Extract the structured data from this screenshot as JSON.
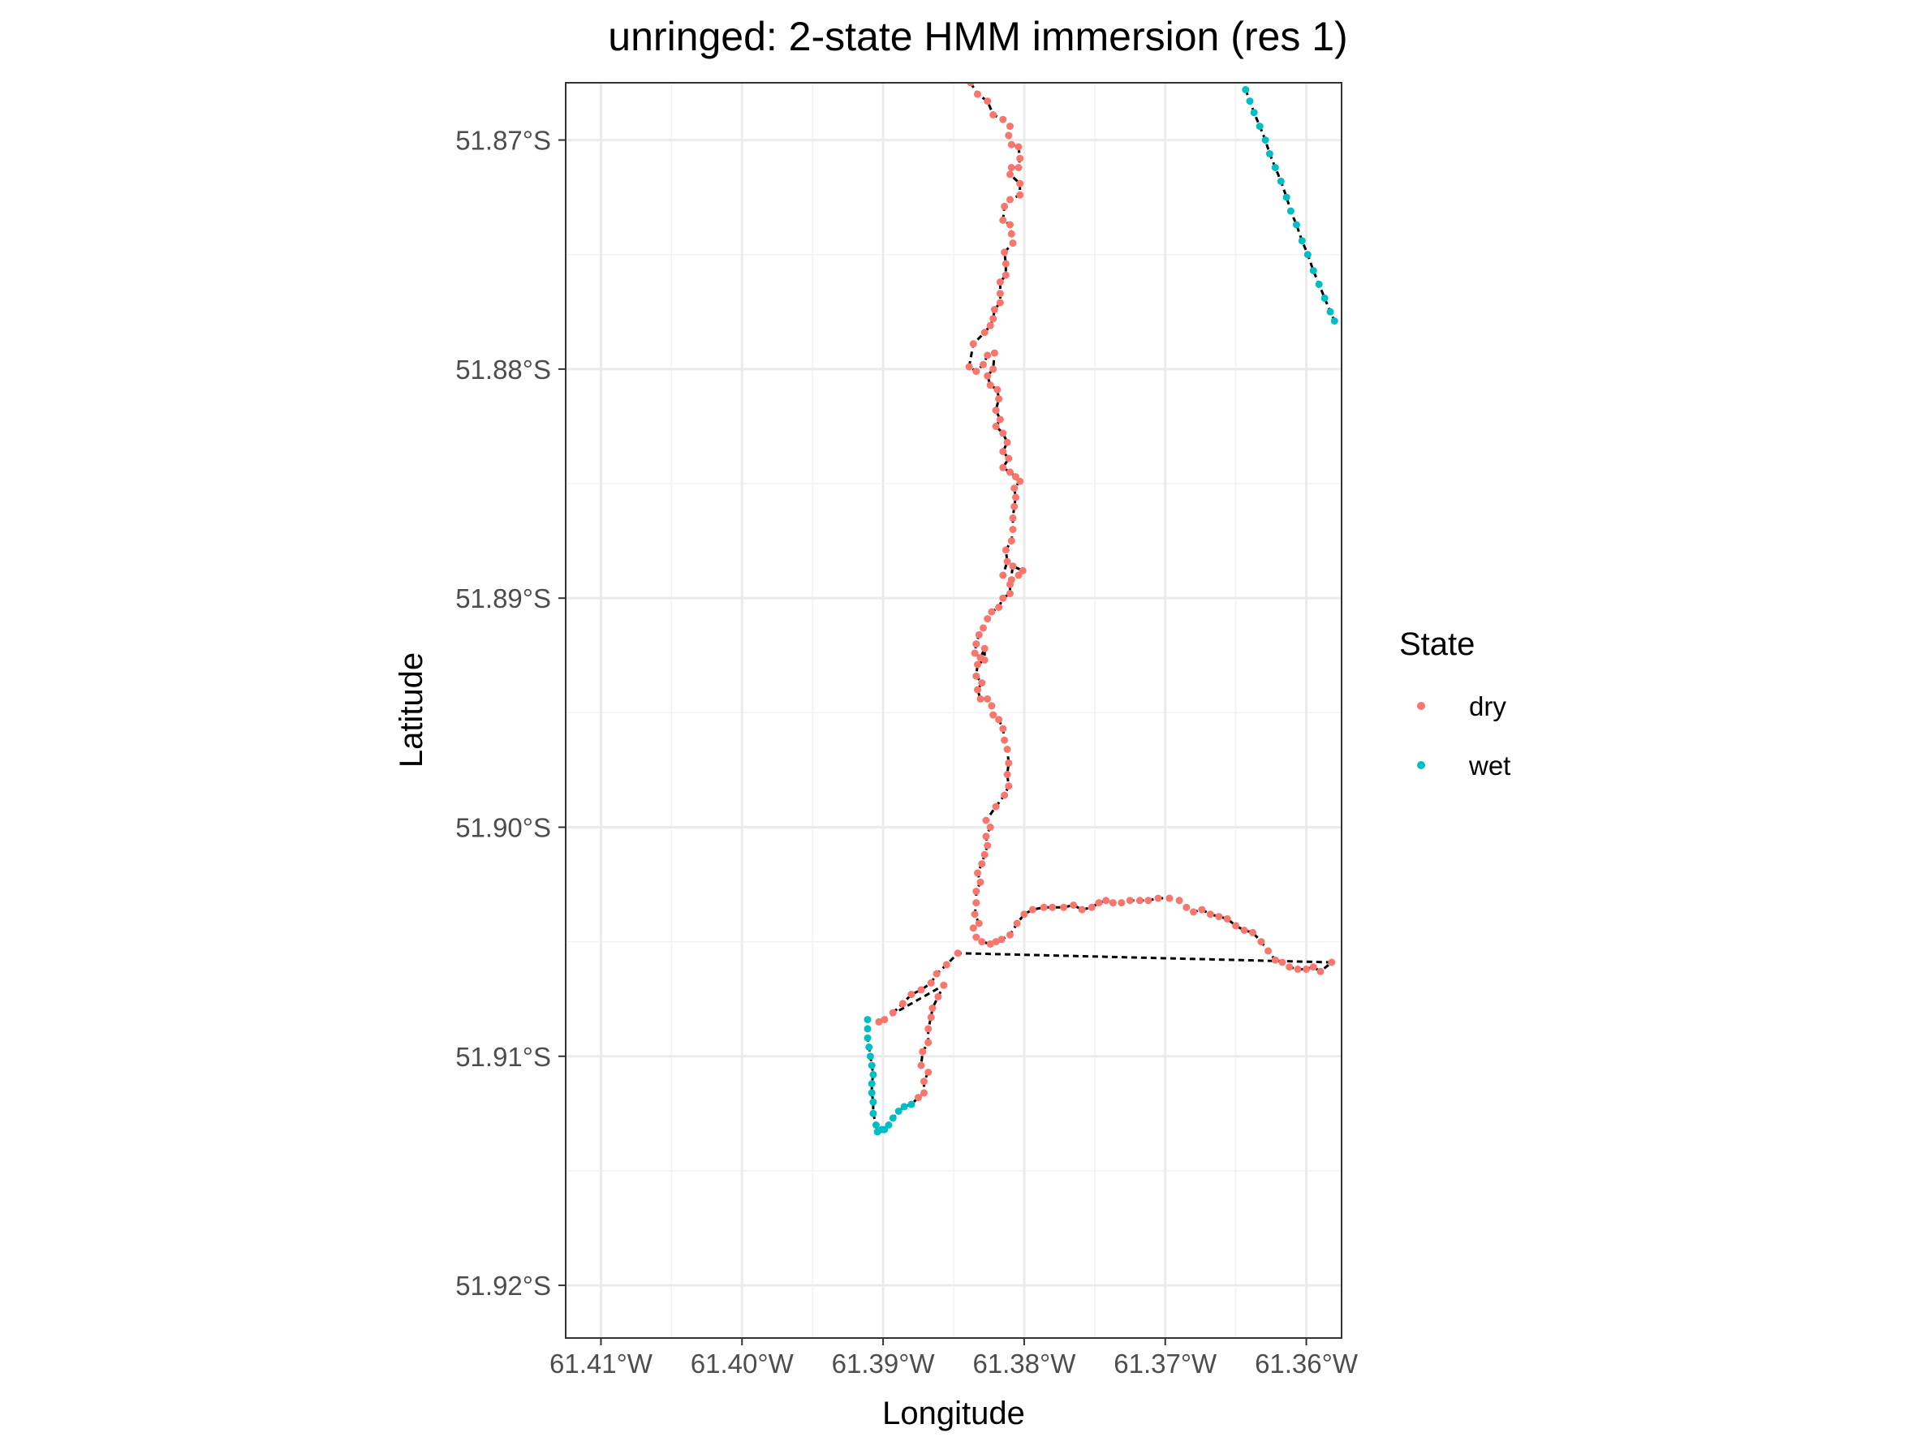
{
  "chart_data": {
    "type": "scatter",
    "title": "unringed: 2-state HMM immersion (res 1)",
    "xlabel": "Longitude",
    "ylabel": "Latitude",
    "xlim": [
      -61.4125,
      -61.3575
    ],
    "ylim": [
      -51.9223,
      -51.8675
    ],
    "x_ticks": [
      {
        "value": -61.41,
        "label": "61.41°W"
      },
      {
        "value": -61.4,
        "label": "61.40°W"
      },
      {
        "value": -61.39,
        "label": "61.39°W"
      },
      {
        "value": -61.38,
        "label": "61.38°W"
      },
      {
        "value": -61.37,
        "label": "61.37°W"
      },
      {
        "value": -61.36,
        "label": "61.36°W"
      }
    ],
    "y_ticks": [
      {
        "value": -51.87,
        "label": "51.87°S"
      },
      {
        "value": -51.88,
        "label": "51.88°S"
      },
      {
        "value": -51.89,
        "label": "51.89°S"
      },
      {
        "value": -51.9,
        "label": "51.90°S"
      },
      {
        "value": -51.91,
        "label": "51.91°S"
      },
      {
        "value": -51.92,
        "label": "51.92°S"
      }
    ],
    "grid": true,
    "legend": {
      "title": "State",
      "position": "right",
      "entries": [
        {
          "label": "dry",
          "color": "#F8766D"
        },
        {
          "label": "wet",
          "color": "#00BFC4"
        }
      ]
    },
    "path_color": "#000000",
    "series": [
      {
        "name": "dry",
        "color": "#F8766D",
        "points": [
          [
            -61.3838,
            -51.8675
          ],
          [
            -61.3833,
            -51.868
          ],
          [
            -61.3826,
            -51.8683
          ],
          [
            -61.3822,
            -51.8689
          ],
          [
            -61.3815,
            -51.8691
          ],
          [
            -61.381,
            -51.8694
          ],
          [
            -61.3811,
            -51.8698
          ],
          [
            -61.3809,
            -51.8702
          ],
          [
            -61.3804,
            -51.8703
          ],
          [
            -61.3803,
            -51.8708
          ],
          [
            -61.3804,
            -51.8712
          ],
          [
            -61.3809,
            -51.8712
          ],
          [
            -61.381,
            -51.8715
          ],
          [
            -61.3803,
            -51.8719
          ],
          [
            -61.3803,
            -51.8724
          ],
          [
            -61.381,
            -51.8726
          ],
          [
            -61.3814,
            -51.8729
          ],
          [
            -61.3815,
            -51.8735
          ],
          [
            -61.381,
            -51.8737
          ],
          [
            -61.3809,
            -51.8741
          ],
          [
            -61.3808,
            -51.8745
          ],
          [
            -61.3814,
            -51.8749
          ],
          [
            -61.3813,
            -51.8754
          ],
          [
            -61.3813,
            -51.8759
          ],
          [
            -61.3817,
            -51.8762
          ],
          [
            -61.3817,
            -51.8767
          ],
          [
            -61.3817,
            -51.8771
          ],
          [
            -61.3821,
            -51.8774
          ],
          [
            -61.3822,
            -51.8778
          ],
          [
            -61.3824,
            -51.8781
          ],
          [
            -61.3828,
            -51.8784
          ],
          [
            -61.3836,
            -51.8789
          ],
          [
            -61.3839,
            -51.8799
          ],
          [
            -61.3834,
            -51.8801
          ],
          [
            -61.3829,
            -51.8798
          ],
          [
            -61.3826,
            -51.8794
          ],
          [
            -61.3821,
            -51.8793
          ],
          [
            -61.3822,
            -51.88
          ],
          [
            -61.3826,
            -51.8803
          ],
          [
            -61.3824,
            -51.8807
          ],
          [
            -61.3819,
            -51.8809
          ],
          [
            -61.3818,
            -51.8813
          ],
          [
            -61.382,
            -51.8818
          ],
          [
            -61.3817,
            -51.8822
          ],
          [
            -61.382,
            -51.8825
          ],
          [
            -61.3815,
            -51.8828
          ],
          [
            -61.3812,
            -51.8832
          ],
          [
            -61.3815,
            -51.8836
          ],
          [
            -61.3811,
            -51.8839
          ],
          [
            -61.3815,
            -51.8843
          ],
          [
            -61.381,
            -51.8845
          ],
          [
            -61.3806,
            -51.8847
          ],
          [
            -61.3803,
            -51.8849
          ],
          [
            -61.3807,
            -51.8852
          ],
          [
            -61.3806,
            -51.8856
          ],
          [
            -61.3807,
            -51.886
          ],
          [
            -61.3808,
            -51.8865
          ],
          [
            -61.3808,
            -51.887
          ],
          [
            -61.3809,
            -51.8875
          ],
          [
            -61.3813,
            -51.8879
          ],
          [
            -61.3812,
            -51.8884
          ],
          [
            -61.3815,
            -51.889
          ],
          [
            -61.3809,
            -51.8892
          ],
          [
            -61.3804,
            -51.889
          ],
          [
            -61.3801,
            -51.8888
          ],
          [
            -61.3808,
            -51.8886
          ],
          [
            -61.381,
            -51.8894
          ],
          [
            -61.381,
            -51.8898
          ],
          [
            -61.3815,
            -51.89
          ],
          [
            -61.3818,
            -51.8904
          ],
          [
            -61.3823,
            -51.8906
          ],
          [
            -61.3826,
            -51.8909
          ],
          [
            -61.3829,
            -51.8913
          ],
          [
            -61.3832,
            -51.8916
          ],
          [
            -61.3834,
            -51.892
          ],
          [
            -61.3835,
            -51.8924
          ],
          [
            -61.3831,
            -51.8926
          ],
          [
            -61.3828,
            -51.8922
          ],
          [
            -61.3828,
            -51.8927
          ],
          [
            -61.3833,
            -51.8929
          ],
          [
            -61.3834,
            -51.8934
          ],
          [
            -61.383,
            -51.8937
          ],
          [
            -61.3833,
            -51.894
          ],
          [
            -61.3831,
            -51.8944
          ],
          [
            -61.3826,
            -51.8944
          ],
          [
            -61.3823,
            -51.8947
          ],
          [
            -61.3822,
            -51.8951
          ],
          [
            -61.3818,
            -51.8953
          ],
          [
            -61.3815,
            -51.8957
          ],
          [
            -61.3814,
            -51.8962
          ],
          [
            -61.3812,
            -51.8966
          ],
          [
            -61.3811,
            -51.8972
          ],
          [
            -61.3812,
            -51.8977
          ],
          [
            -61.3811,
            -51.8982
          ],
          [
            -61.3814,
            -51.8986
          ],
          [
            -61.382,
            -51.8991
          ],
          [
            -61.3827,
            -51.8997
          ],
          [
            -61.3824,
            -51.9
          ],
          [
            -61.3827,
            -51.9004
          ],
          [
            -61.3826,
            -51.9008
          ],
          [
            -61.3828,
            -51.9012
          ],
          [
            -61.383,
            -51.9016
          ],
          [
            -61.3833,
            -51.902
          ],
          [
            -61.3831,
            -51.9024
          ],
          [
            -61.3834,
            -51.9028
          ],
          [
            -61.3834,
            -51.9033
          ],
          [
            -61.3835,
            -51.9038
          ],
          [
            -61.3832,
            -51.9042
          ],
          [
            -61.3836,
            -51.9044
          ],
          [
            -61.3834,
            -51.9048
          ],
          [
            -61.383,
            -51.905
          ],
          [
            -61.3824,
            -51.9051
          ],
          [
            -61.382,
            -51.905
          ],
          [
            -61.3816,
            -51.9049
          ],
          [
            -61.381,
            -51.9047
          ],
          [
            -61.3805,
            -51.9042
          ],
          [
            -61.38,
            -51.9038
          ],
          [
            -61.3794,
            -51.9036
          ],
          [
            -61.3786,
            -51.9035
          ],
          [
            -61.378,
            -51.9035
          ],
          [
            -61.3772,
            -51.9035
          ],
          [
            -61.3765,
            -51.9034
          ],
          [
            -61.3759,
            -51.9036
          ],
          [
            -61.3752,
            -51.9035
          ],
          [
            -61.3747,
            -51.9033
          ],
          [
            -61.3742,
            -51.9032
          ],
          [
            -61.3737,
            -51.9033
          ],
          [
            -61.3731,
            -51.9033
          ],
          [
            -61.3725,
            -51.9032
          ],
          [
            -61.3718,
            -51.9032
          ],
          [
            -61.3712,
            -51.9032
          ],
          [
            -61.3705,
            -51.9031
          ],
          [
            -61.3697,
            -51.9031
          ],
          [
            -61.369,
            -51.9032
          ],
          [
            -61.3685,
            -51.9035
          ],
          [
            -61.368,
            -51.9037
          ],
          [
            -61.3674,
            -51.9036
          ],
          [
            -61.3668,
            -51.9038
          ],
          [
            -61.3662,
            -51.9039
          ],
          [
            -61.3656,
            -51.904
          ],
          [
            -61.365,
            -51.9043
          ],
          [
            -61.3644,
            -51.9045
          ],
          [
            -61.3638,
            -51.9046
          ],
          [
            -61.3632,
            -51.905
          ],
          [
            -61.3627,
            -51.9054
          ],
          [
            -61.3622,
            -51.9058
          ],
          [
            -61.3617,
            -51.9059
          ],
          [
            -61.3612,
            -51.9061
          ],
          [
            -61.3606,
            -51.9062
          ],
          [
            -61.36,
            -51.9062
          ],
          [
            -61.3595,
            -51.9061
          ],
          [
            -61.359,
            -51.9063
          ],
          [
            -61.3582,
            -51.9059
          ],
          [
            -61.3847,
            -51.9055
          ],
          [
            -61.3855,
            -51.906
          ],
          [
            -61.3862,
            -51.9064
          ],
          [
            -61.3866,
            -51.9068
          ],
          [
            -61.3873,
            -51.9071
          ],
          [
            -61.388,
            -51.9073
          ],
          [
            -61.3886,
            -51.9077
          ],
          [
            -61.3893,
            -51.9081
          ],
          [
            -61.3899,
            -51.9084
          ],
          [
            -61.3903,
            -51.9085
          ],
          [
            -61.3857,
            -51.9069
          ],
          [
            -61.3861,
            -51.9074
          ],
          [
            -61.3865,
            -51.9079
          ],
          [
            -61.3866,
            -51.9083
          ],
          [
            -61.3868,
            -51.9088
          ],
          [
            -61.3868,
            -51.9094
          ],
          [
            -61.3872,
            -51.9098
          ],
          [
            -61.3873,
            -51.9104
          ],
          [
            -61.3868,
            -51.9107
          ],
          [
            -61.3871,
            -51.9111
          ],
          [
            -61.3871,
            -51.9116
          ],
          [
            -61.3875,
            -51.9118
          ],
          [
            -61.388,
            -51.9121
          ]
        ]
      },
      {
        "name": "wet",
        "color": "#00BFC4",
        "points": [
          [
            -61.388,
            -51.9121
          ],
          [
            -61.3885,
            -51.9122
          ],
          [
            -61.3889,
            -51.9124
          ],
          [
            -61.3893,
            -51.9127
          ],
          [
            -61.3896,
            -51.913
          ],
          [
            -61.3899,
            -51.9132
          ],
          [
            -61.3901,
            -51.9132
          ],
          [
            -61.3904,
            -51.9133
          ],
          [
            -61.3905,
            -51.913
          ],
          [
            -61.3907,
            -51.9125
          ],
          [
            -61.3907,
            -51.912
          ],
          [
            -61.3908,
            -51.9116
          ],
          [
            -61.3908,
            -51.9112
          ],
          [
            -61.3907,
            -51.9108
          ],
          [
            -61.3908,
            -51.9104
          ],
          [
            -61.3909,
            -51.91
          ],
          [
            -61.391,
            -51.9096
          ],
          [
            -61.3911,
            -51.9092
          ],
          [
            -61.3911,
            -51.9088
          ],
          [
            -61.3911,
            -51.9084
          ],
          [
            -61.3643,
            -51.8678
          ],
          [
            -61.364,
            -51.8683
          ],
          [
            -61.3637,
            -51.8688
          ],
          [
            -61.3633,
            -51.8694
          ],
          [
            -61.3629,
            -51.87
          ],
          [
            -61.3626,
            -51.8706
          ],
          [
            -61.3622,
            -51.8712
          ],
          [
            -61.3618,
            -51.8718
          ],
          [
            -61.3614,
            -51.8725
          ],
          [
            -61.3611,
            -51.8731
          ],
          [
            -61.3607,
            -51.8737
          ],
          [
            -61.3603,
            -51.8744
          ],
          [
            -61.3599,
            -51.875
          ],
          [
            -61.3595,
            -51.8757
          ],
          [
            -61.3591,
            -51.8763
          ],
          [
            -61.3587,
            -51.8769
          ],
          [
            -61.3583,
            -51.8775
          ],
          [
            -61.358,
            -51.8779
          ]
        ]
      }
    ]
  }
}
